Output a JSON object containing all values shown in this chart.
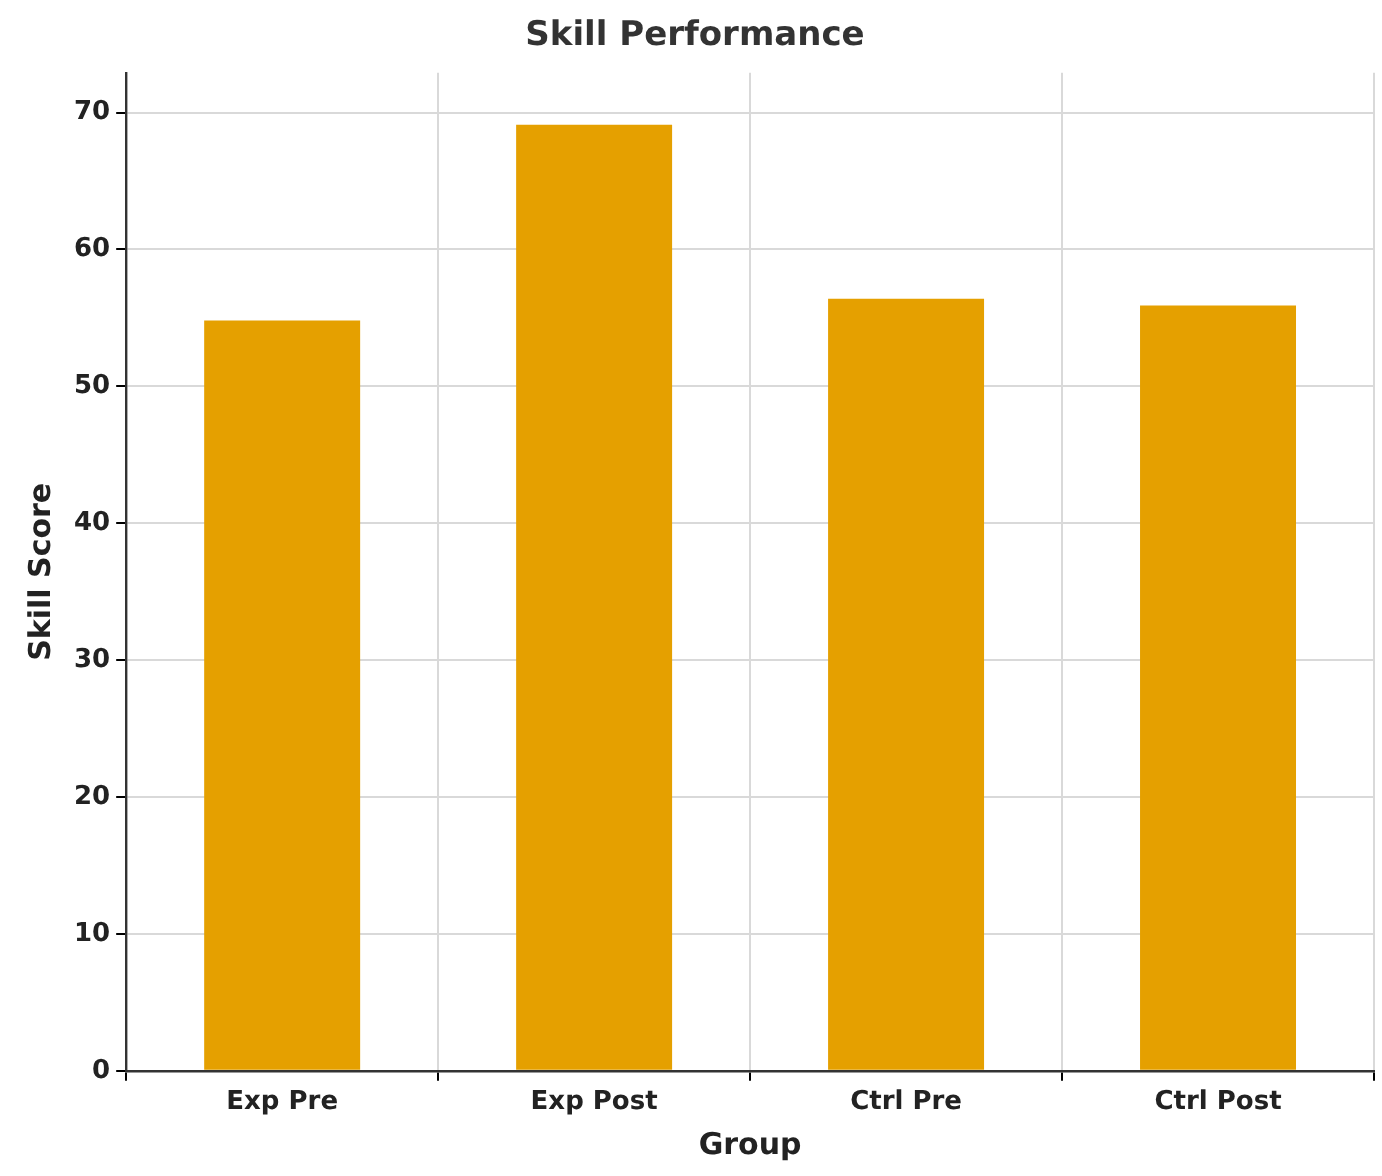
{
  "chart_data": {
    "type": "bar",
    "title": "Skill Performance",
    "xlabel": "Group",
    "ylabel": "Skill Score",
    "categories": [
      "Exp Pre",
      "Exp Post",
      "Ctrl Pre",
      "Ctrl Post"
    ],
    "values": [
      54.8,
      69.1,
      56.4,
      55.9
    ],
    "color": "#e5a000",
    "ylim": [
      0,
      72.9
    ],
    "yticks": [
      0,
      10,
      20,
      30,
      40,
      50,
      60,
      70
    ],
    "grid": true,
    "legend": false
  }
}
